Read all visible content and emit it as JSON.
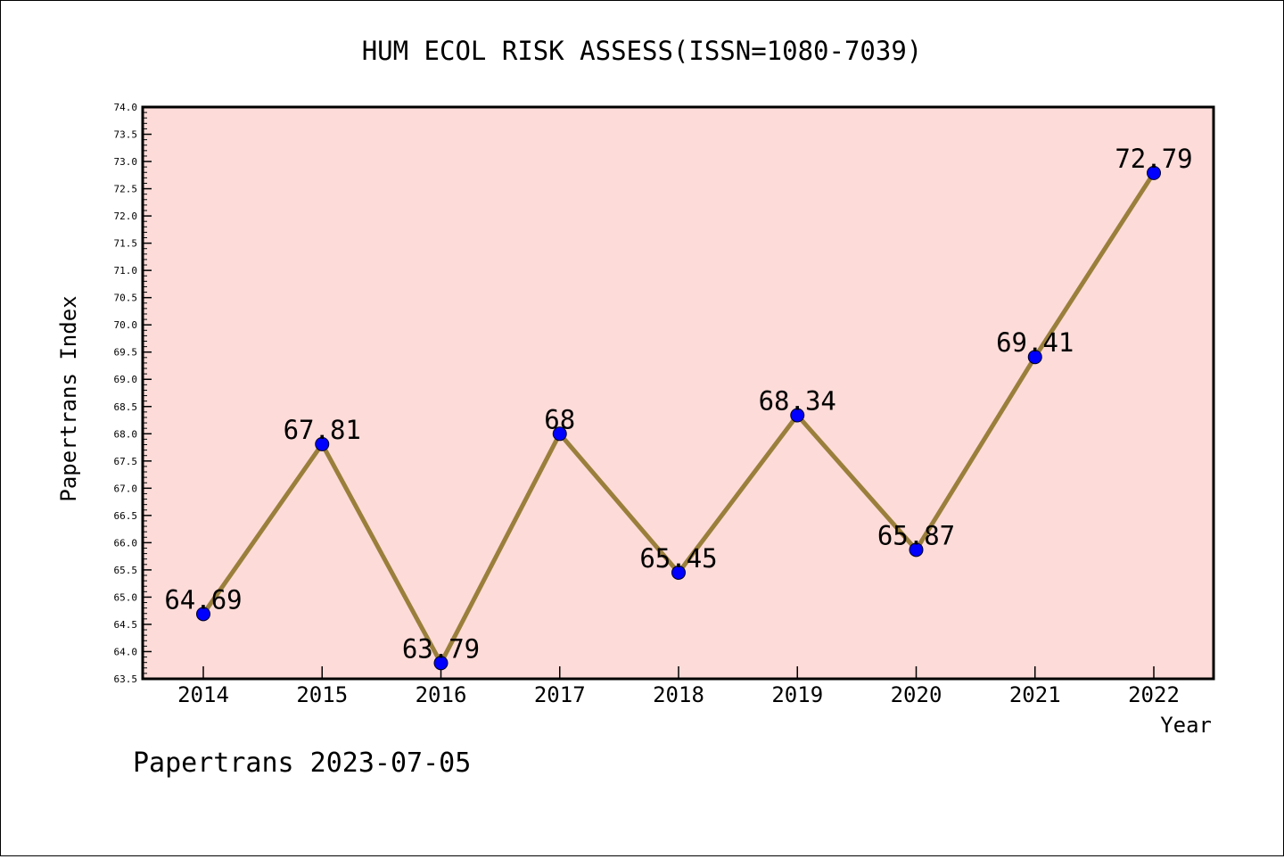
{
  "chart_data": {
    "type": "line",
    "title": "HUM ECOL RISK ASSESS(ISSN=1080-7039)",
    "xlabel": "Year",
    "ylabel": "Papertrans Index",
    "categories": [
      "2014",
      "2015",
      "2016",
      "2017",
      "2018",
      "2019",
      "2020",
      "2021",
      "2022"
    ],
    "values": [
      64.69,
      67.81,
      63.79,
      68,
      65.45,
      68.34,
      65.87,
      69.41,
      72.79
    ],
    "data_labels": [
      "64.69",
      "67.81",
      "63.79",
      "68",
      "65.45",
      "68.34",
      "65.87",
      "69.41",
      "72.79"
    ],
    "ylim": [
      63.5,
      74.0
    ],
    "yticks": [
      "63.5",
      "64.0",
      "64.5",
      "65.0",
      "65.5",
      "66.0",
      "66.5",
      "67.0",
      "67.5",
      "68.0",
      "68.5",
      "69.0",
      "69.5",
      "70.0",
      "70.5",
      "71.0",
      "71.5",
      "72.0",
      "72.5",
      "73.0",
      "73.5",
      "74.0"
    ],
    "grid": false,
    "colors": {
      "plot_background": "#fddbd8",
      "line": "#9a7f3c",
      "marker": "#0000ff"
    }
  },
  "footer": {
    "watermark": "Papertrans 2023-07-05"
  }
}
